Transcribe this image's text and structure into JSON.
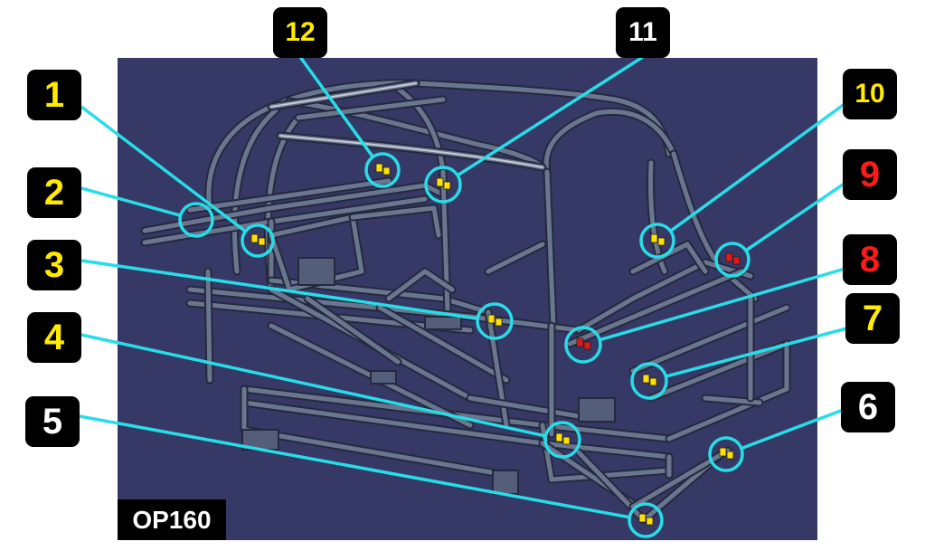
{
  "view_label": "OP160",
  "colors": {
    "background": "#363866",
    "frame": "#6a7590",
    "frame_dark": "#242a3c",
    "leader": "#27dde8",
    "marker_yellow": "#ffe000",
    "marker_red": "#e01818"
  },
  "callouts": [
    {
      "label": "1",
      "color": "yellow",
      "marker": "yellow"
    },
    {
      "label": "2",
      "color": "yellow",
      "marker": "none"
    },
    {
      "label": "3",
      "color": "yellow",
      "marker": "yellow"
    },
    {
      "label": "4",
      "color": "yellow",
      "marker": "yellow"
    },
    {
      "label": "5",
      "color": "white",
      "marker": "yellow"
    },
    {
      "label": "6",
      "color": "white",
      "marker": "yellow"
    },
    {
      "label": "7",
      "color": "yellow",
      "marker": "yellow"
    },
    {
      "label": "8",
      "color": "red",
      "marker": "red"
    },
    {
      "label": "9",
      "color": "red",
      "marker": "red"
    },
    {
      "label": "10",
      "color": "yellow",
      "marker": "yellow"
    },
    {
      "label": "11",
      "color": "white",
      "marker": "yellow"
    },
    {
      "label": "12",
      "color": "yellow",
      "marker": "yellow"
    }
  ]
}
